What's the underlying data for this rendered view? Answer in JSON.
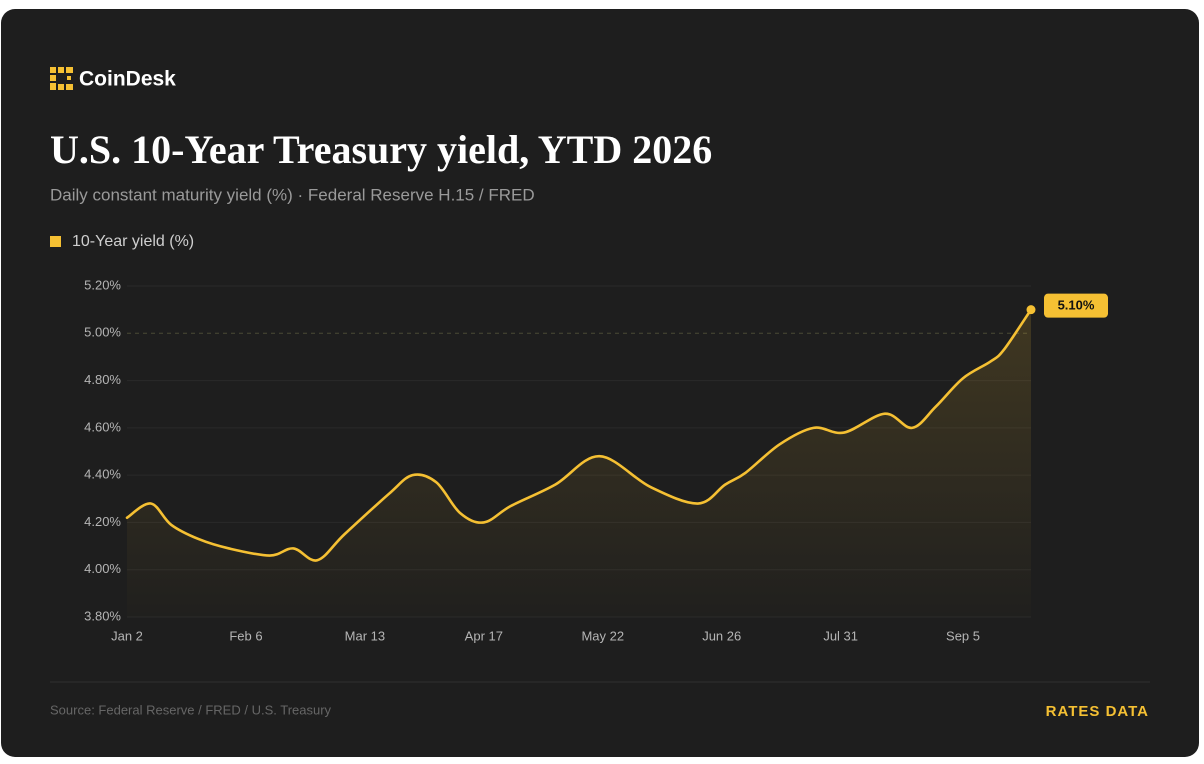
{
  "brand": "CoinDesk",
  "source": "Source: Federal Reserve / FRED / U.S. Treasury",
  "tag": "RATES DATA",
  "chart_data": {
    "type": "line",
    "title": "U.S. 10-Year Treasury yield, YTD 2026",
    "subtitle": "Daily constant maturity yield (%) · Federal Reserve H.15 / FRED",
    "x": [
      "2026-01-02",
      "2026-01-09",
      "2026-01-15",
      "2026-01-23",
      "2026-02-01",
      "2026-02-13",
      "2026-02-20",
      "2026-02-27",
      "2026-03-07",
      "2026-03-20",
      "2026-03-27",
      "2026-04-03",
      "2026-04-10",
      "2026-04-17",
      "2026-04-25",
      "2026-05-08",
      "2026-05-21",
      "2026-06-05",
      "2026-06-19",
      "2026-06-27",
      "2026-07-03",
      "2026-07-13",
      "2026-07-23",
      "2026-08-01",
      "2026-08-13",
      "2026-08-21",
      "2026-08-28",
      "2026-09-05",
      "2026-09-13",
      "2026-09-17",
      "2026-09-25"
    ],
    "series": [
      {
        "name": "10-Year yield (%)",
        "color": "#f5c033",
        "values": [
          4.22,
          4.28,
          4.19,
          4.13,
          4.09,
          4.06,
          4.09,
          4.04,
          4.15,
          4.32,
          4.4,
          4.37,
          4.24,
          4.2,
          4.27,
          4.36,
          4.48,
          4.35,
          4.28,
          4.36,
          4.41,
          4.53,
          4.6,
          4.58,
          4.66,
          4.6,
          4.69,
          4.81,
          4.88,
          4.93,
          5.1
        ],
        "value_labels": [
          null,
          null,
          null,
          null,
          null,
          null,
          null,
          null,
          null,
          null,
          null,
          null,
          null,
          null,
          null,
          null,
          null,
          null,
          null,
          null,
          null,
          null,
          null,
          null,
          null,
          null,
          null,
          null,
          null,
          null,
          "5.10%"
        ]
      }
    ],
    "xlim": [
      "2026-01-02",
      "2026-09-25"
    ],
    "xticks": [
      {
        "value": "2026-01-02",
        "label": "Jan 2"
      },
      {
        "value": "2026-02-06",
        "label": "Feb 6"
      },
      {
        "value": "2026-03-13",
        "label": "Mar 13"
      },
      {
        "value": "2026-04-17",
        "label": "Apr 17"
      },
      {
        "value": "2026-05-22",
        "label": "May 22"
      },
      {
        "value": "2026-06-26",
        "label": "Jun 26"
      },
      {
        "value": "2026-07-31",
        "label": "Jul 31"
      },
      {
        "value": "2026-09-05",
        "label": "Sep 5"
      }
    ],
    "ylim": [
      3.8,
      5.2
    ],
    "yticks": [
      {
        "value": 3.8,
        "label": "3.80%"
      },
      {
        "value": 4.0,
        "label": "4.00%"
      },
      {
        "value": 4.2,
        "label": "4.20%"
      },
      {
        "value": 4.4,
        "label": "4.40%"
      },
      {
        "value": 4.6,
        "label": "4.60%"
      },
      {
        "value": 4.8,
        "label": "4.80%"
      },
      {
        "value": 5.0,
        "label": "5.00%"
      },
      {
        "value": 5.2,
        "label": "5.20%"
      }
    ],
    "dashed_ytick": 5.0,
    "grid": true,
    "legend": "top-left"
  }
}
